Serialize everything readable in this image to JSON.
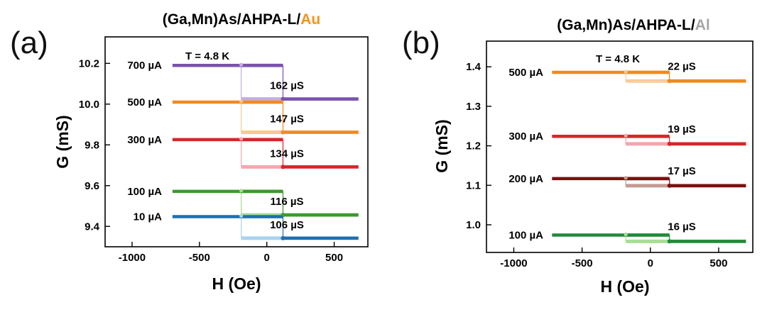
{
  "panels": [
    {
      "letter": "(a)",
      "title_prefix": "(Ga,Mn)As/AHPA-L/",
      "title_metal": "Au",
      "title_metal_color": "#F39419",
      "temperature": "T = 4.8 K",
      "xlabel": "H (Oe)",
      "ylabel": "G (mS)"
    },
    {
      "letter": "(b)",
      "title_prefix": "(Ga,Mn)As/AHPA-L/",
      "title_metal": "Al",
      "title_metal_color": "#A6A6A6",
      "temperature": "T = 4.8 K",
      "xlabel": "H (Oe)",
      "ylabel": "G (mS)"
    }
  ],
  "chart_data": [
    {
      "type": "line",
      "title": "(Ga,Mn)As/AHPA-L/Au",
      "xlabel": "H (Oe)",
      "ylabel": "G (mS)",
      "xlim": [
        -1200,
        750
      ],
      "ylim": [
        9.3,
        10.33
      ],
      "xticks": [
        -1000,
        -500,
        0,
        500
      ],
      "yticks": [
        9.4,
        9.6,
        9.8,
        10.0,
        10.2
      ],
      "ytick_labels": [
        "9.4",
        "9.6",
        "9.8",
        "10.0",
        "10.2"
      ],
      "annotation": "T = 4.8 K",
      "series": [
        {
          "name": "700 µA",
          "color": "#7B52AE",
          "light_color": "#C2AEDF",
          "high": 10.19,
          "low": 10.025,
          "h_switch_up": 120,
          "h_switch_down": -190,
          "delta": "162 µS"
        },
        {
          "name": "500 µA",
          "color": "#F28A1E",
          "light_color": "#F9C894",
          "high": 10.01,
          "low": 9.862,
          "h_switch_up": 120,
          "h_switch_down": -190,
          "delta": "147 µS"
        },
        {
          "name": "300 µA",
          "color": "#D62728",
          "light_color": "#F4A7AE",
          "high": 9.826,
          "low": 9.692,
          "h_switch_up": 120,
          "h_switch_down": -190,
          "delta": "134 µS"
        },
        {
          "name": "100 µA",
          "color": "#3A9A2F",
          "light_color": "#A8DC8F",
          "high": 9.572,
          "low": 9.456,
          "h_switch_up": 120,
          "h_switch_down": -190,
          "delta": "116 µS"
        },
        {
          "name": "10 µA",
          "color": "#1F6FB0",
          "light_color": "#A8D2EF",
          "high": 9.448,
          "low": 9.342,
          "h_switch_up": 120,
          "h_switch_down": -190,
          "delta": "106 µS"
        }
      ]
    },
    {
      "type": "line",
      "title": "(Ga,Mn)As/AHPA-L/Al",
      "xlabel": "H (Oe)",
      "ylabel": "G (mS)",
      "xlim": [
        -1200,
        750
      ],
      "ylim": [
        0.93,
        1.465
      ],
      "xticks": [
        -1000,
        -500,
        0,
        500
      ],
      "yticks": [
        1.0,
        1.1,
        1.2,
        1.3,
        1.4
      ],
      "ytick_labels": [
        "1.0",
        "1.1",
        "1.2",
        "1.3",
        "1.4"
      ],
      "annotation": "T = 4.8 K",
      "series": [
        {
          "name": "500 µA",
          "color": "#F08A1C",
          "light_color": "#F9CC9C",
          "high": 1.386,
          "low": 1.364,
          "h_switch_up": 140,
          "h_switch_down": -180,
          "delta": "22 µS"
        },
        {
          "name": "300 µA",
          "color": "#D62728",
          "light_color": "#F2A5AC",
          "high": 1.224,
          "low": 1.205,
          "h_switch_up": 140,
          "h_switch_down": -180,
          "delta": "19 µS"
        },
        {
          "name": "200 µA",
          "color": "#7A1010",
          "light_color": "#C79A92",
          "high": 1.117,
          "low": 1.099,
          "h_switch_up": 140,
          "h_switch_down": -180,
          "delta": "17 µS"
        },
        {
          "name": "100 µA",
          "color": "#1E8A3A",
          "light_color": "#A7DE95",
          "high": 0.974,
          "low": 0.958,
          "h_switch_up": 140,
          "h_switch_down": -180,
          "delta": "16 µS"
        }
      ]
    }
  ]
}
